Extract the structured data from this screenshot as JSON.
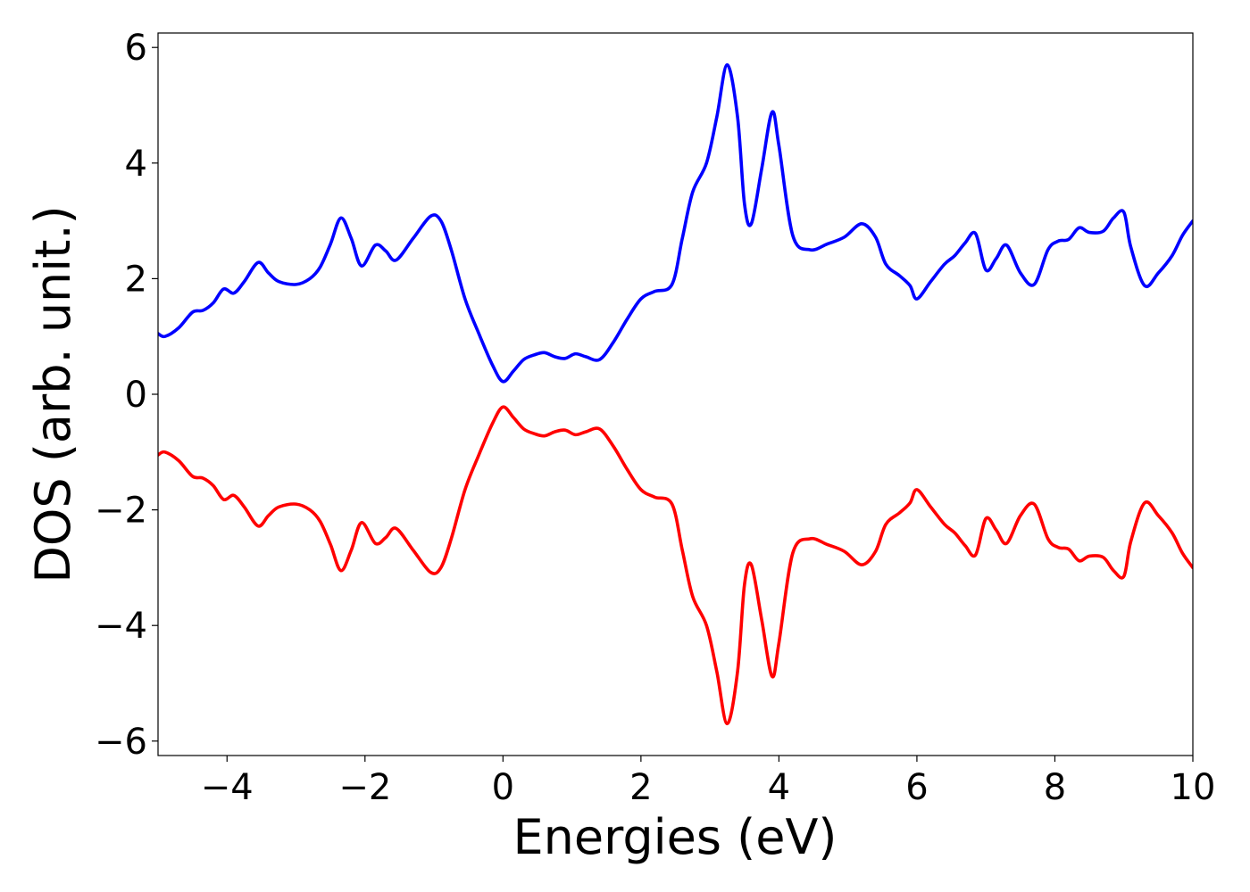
{
  "chart_data": {
    "type": "line",
    "title": "",
    "xlabel": "Energies (eV)",
    "ylabel": "DOS (arb. unit.)",
    "xlim": [
      -5,
      10
    ],
    "ylim": [
      -6.25,
      6.25
    ],
    "xticks": [
      -4,
      -2,
      0,
      2,
      4,
      6,
      8,
      10
    ],
    "xtick_labels": [
      "−4",
      "−2",
      "0",
      "2",
      "4",
      "6",
      "8",
      "10"
    ],
    "yticks": [
      -6,
      -4,
      -2,
      0,
      2,
      4,
      6
    ],
    "ytick_labels": [
      "−6",
      "−4",
      "−2",
      "0",
      "2",
      "4",
      "6"
    ],
    "grid": false,
    "legend": "none",
    "series": [
      {
        "color": "#0000ff",
        "x": [
          -5.0,
          -4.9,
          -4.7,
          -4.5,
          -4.35,
          -4.2,
          -4.05,
          -3.9,
          -3.75,
          -3.55,
          -3.4,
          -3.25,
          -3.0,
          -2.8,
          -2.65,
          -2.5,
          -2.35,
          -2.2,
          -2.05,
          -1.85,
          -1.7,
          -1.55,
          -1.3,
          -1.05,
          -0.9,
          -0.75,
          -0.55,
          -0.35,
          -0.15,
          0.0,
          0.15,
          0.3,
          0.45,
          0.6,
          0.75,
          0.9,
          1.05,
          1.2,
          1.4,
          1.6,
          1.8,
          2.0,
          2.2,
          2.45,
          2.6,
          2.75,
          2.95,
          3.1,
          3.25,
          3.4,
          3.5,
          3.6,
          3.75,
          3.9,
          4.0,
          4.2,
          4.45,
          4.7,
          4.95,
          5.2,
          5.4,
          5.55,
          5.75,
          5.9,
          6.0,
          6.2,
          6.4,
          6.55,
          6.7,
          6.85,
          7.0,
          7.15,
          7.3,
          7.5,
          7.7,
          7.9,
          8.05,
          8.2,
          8.35,
          8.5,
          8.7,
          8.85,
          9.0,
          9.1,
          9.3,
          9.5,
          9.7,
          9.85,
          10.0
        ],
        "y": [
          1.05,
          1.0,
          1.15,
          1.42,
          1.45,
          1.58,
          1.82,
          1.75,
          1.95,
          2.28,
          2.1,
          1.95,
          1.9,
          2.0,
          2.2,
          2.6,
          3.05,
          2.7,
          2.22,
          2.58,
          2.48,
          2.32,
          2.7,
          3.08,
          3.0,
          2.5,
          1.65,
          1.05,
          0.5,
          0.22,
          0.4,
          0.6,
          0.68,
          0.72,
          0.65,
          0.62,
          0.7,
          0.65,
          0.6,
          0.9,
          1.3,
          1.65,
          1.78,
          1.9,
          2.7,
          3.5,
          4.0,
          4.8,
          5.7,
          4.8,
          3.3,
          2.95,
          3.9,
          4.88,
          4.3,
          2.75,
          2.5,
          2.6,
          2.72,
          2.95,
          2.72,
          2.25,
          2.05,
          1.88,
          1.65,
          1.95,
          2.25,
          2.4,
          2.62,
          2.78,
          2.15,
          2.35,
          2.58,
          2.1,
          1.9,
          2.5,
          2.65,
          2.68,
          2.88,
          2.8,
          2.82,
          3.05,
          3.15,
          2.55,
          1.88,
          2.1,
          2.4,
          2.75,
          3.0
        ]
      },
      {
        "color": "#ff0000",
        "x": [
          -5.0,
          -4.9,
          -4.7,
          -4.5,
          -4.35,
          -4.2,
          -4.05,
          -3.9,
          -3.75,
          -3.55,
          -3.4,
          -3.25,
          -3.0,
          -2.8,
          -2.65,
          -2.5,
          -2.35,
          -2.2,
          -2.05,
          -1.85,
          -1.7,
          -1.55,
          -1.3,
          -1.05,
          -0.9,
          -0.75,
          -0.55,
          -0.35,
          -0.15,
          0.0,
          0.15,
          0.3,
          0.45,
          0.6,
          0.75,
          0.9,
          1.05,
          1.2,
          1.4,
          1.6,
          1.8,
          2.0,
          2.2,
          2.45,
          2.6,
          2.75,
          2.95,
          3.1,
          3.25,
          3.4,
          3.5,
          3.6,
          3.75,
          3.9,
          4.0,
          4.2,
          4.45,
          4.7,
          4.95,
          5.2,
          5.4,
          5.55,
          5.75,
          5.9,
          6.0,
          6.2,
          6.4,
          6.55,
          6.7,
          6.85,
          7.0,
          7.15,
          7.3,
          7.5,
          7.7,
          7.9,
          8.05,
          8.2,
          8.35,
          8.5,
          8.7,
          8.85,
          9.0,
          9.1,
          9.3,
          9.5,
          9.7,
          9.85,
          10.0
        ],
        "y": [
          -1.05,
          -1.0,
          -1.15,
          -1.42,
          -1.45,
          -1.58,
          -1.82,
          -1.75,
          -1.95,
          -2.28,
          -2.1,
          -1.95,
          -1.9,
          -2.0,
          -2.2,
          -2.6,
          -3.05,
          -2.7,
          -2.22,
          -2.58,
          -2.48,
          -2.32,
          -2.7,
          -3.08,
          -3.0,
          -2.5,
          -1.65,
          -1.05,
          -0.5,
          -0.22,
          -0.4,
          -0.6,
          -0.68,
          -0.72,
          -0.65,
          -0.62,
          -0.7,
          -0.65,
          -0.6,
          -0.9,
          -1.3,
          -1.65,
          -1.78,
          -1.9,
          -2.7,
          -3.5,
          -4.0,
          -4.8,
          -5.7,
          -4.8,
          -3.3,
          -2.95,
          -3.9,
          -4.88,
          -4.3,
          -2.75,
          -2.5,
          -2.6,
          -2.72,
          -2.95,
          -2.72,
          -2.25,
          -2.05,
          -1.88,
          -1.65,
          -1.95,
          -2.25,
          -2.4,
          -2.62,
          -2.78,
          -2.15,
          -2.35,
          -2.58,
          -2.1,
          -1.9,
          -2.5,
          -2.65,
          -2.68,
          -2.88,
          -2.8,
          -2.82,
          -3.05,
          -3.15,
          -2.55,
          -1.88,
          -2.1,
          -2.4,
          -2.75,
          -3.0
        ]
      }
    ]
  }
}
